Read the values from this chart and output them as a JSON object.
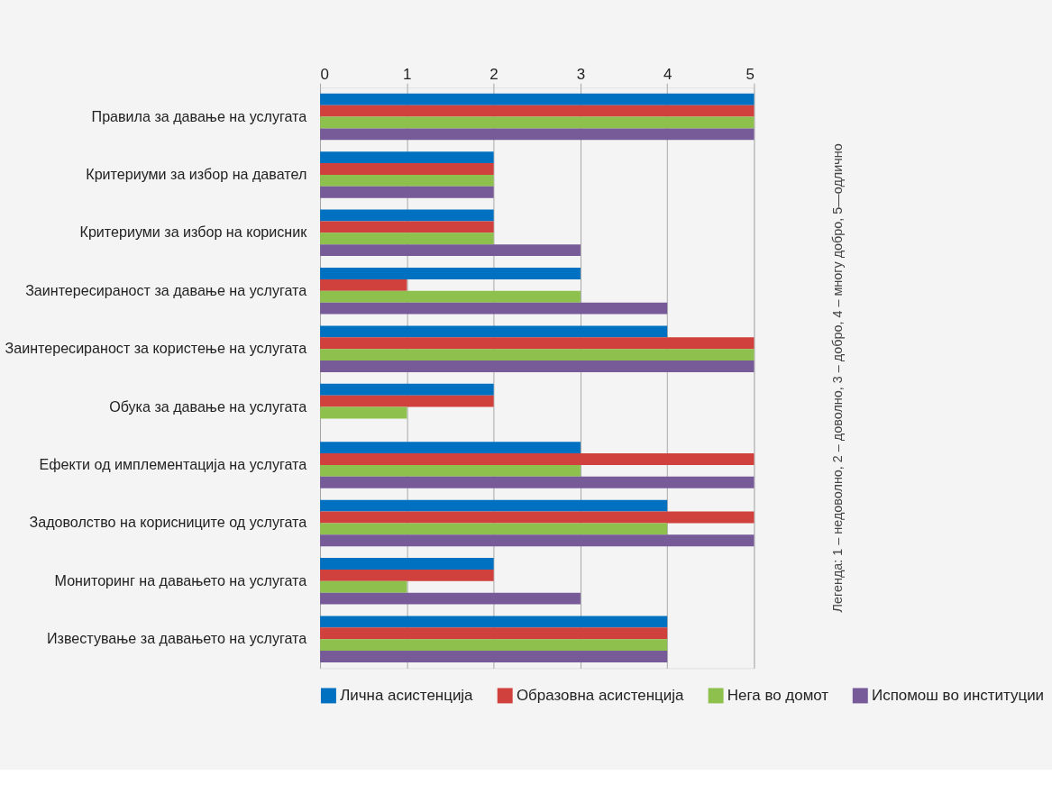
{
  "chart_data": {
    "type": "bar",
    "orientation": "horizontal",
    "categories": [
      "Правила за давање на услугата",
      "Критериуми за избор на давател",
      "Критериуми за избор на корисник",
      "Заинтересираност за давање на услугата",
      "Заинтересираност за користење на услугата",
      "Обука за давање на услугата",
      "Ефекти од имплементација на услугата",
      "Задоволство на корисниците од услугата",
      "Мониторинг на давањето на услугата",
      "Известување за давањето на услугата"
    ],
    "series": [
      {
        "name": "Лична асистенција",
        "color": "#0070c0",
        "values": [
          5,
          2,
          2,
          3,
          4,
          2,
          3,
          4,
          2,
          4
        ]
      },
      {
        "name": "Образовна асистенција",
        "color": "#d0413d",
        "values": [
          5,
          2,
          2,
          1,
          5,
          2,
          5,
          5,
          2,
          4
        ]
      },
      {
        "name": "Нега во домот",
        "color": "#8dc04d",
        "values": [
          5,
          2,
          2,
          3,
          5,
          1,
          3,
          4,
          1,
          4
        ]
      },
      {
        "name": "Испомош во институции",
        "color": "#775a98",
        "values": [
          5,
          2,
          3,
          4,
          5,
          null,
          5,
          5,
          3,
          4
        ]
      }
    ],
    "xlim": [
      0,
      5
    ],
    "xticks": [
      0,
      1,
      2,
      3,
      4,
      5
    ],
    "grid": "x",
    "legend": "bottom",
    "annotations": [
      "Легенда: 1 – недоволно, 2 – доволно, 3 – добро, 4 – многу добро, 5—одлично"
    ]
  }
}
